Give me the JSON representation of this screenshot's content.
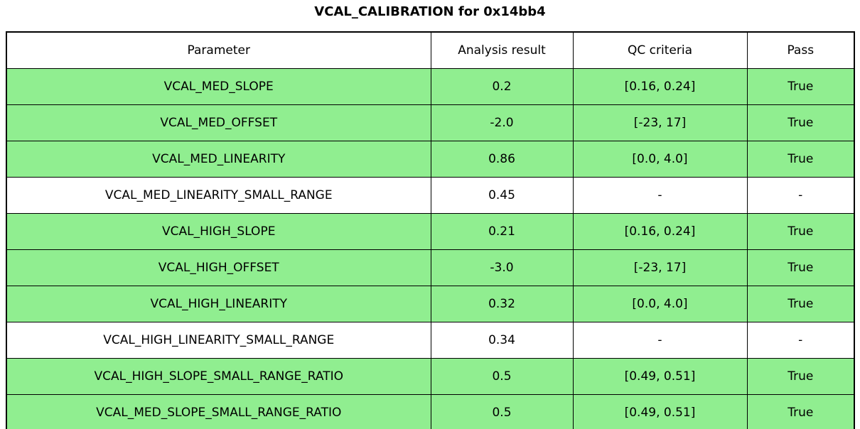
{
  "title": "VCAL_CALIBRATION for 0x14bb4",
  "colors": {
    "pass_row_bg": "#90EE90",
    "neutral_row_bg": "#FFFFFF",
    "border": "#000000",
    "text": "#000000"
  },
  "chart_data": {
    "type": "table",
    "title": "VCAL_CALIBRATION for 0x14bb4",
    "columns": [
      "Parameter",
      "Analysis result",
      "QC criteria",
      "Pass"
    ],
    "rows": [
      {
        "parameter": "VCAL_MED_SLOPE",
        "result": "0.2",
        "criteria": "[0.16, 0.24]",
        "pass": "True",
        "highlight": true
      },
      {
        "parameter": "VCAL_MED_OFFSET",
        "result": "-2.0",
        "criteria": "[-23, 17]",
        "pass": "True",
        "highlight": true
      },
      {
        "parameter": "VCAL_MED_LINEARITY",
        "result": "0.86",
        "criteria": "[0.0, 4.0]",
        "pass": "True",
        "highlight": true
      },
      {
        "parameter": "VCAL_MED_LINEARITY_SMALL_RANGE",
        "result": "0.45",
        "criteria": "-",
        "pass": "-",
        "highlight": false
      },
      {
        "parameter": "VCAL_HIGH_SLOPE",
        "result": "0.21",
        "criteria": "[0.16, 0.24]",
        "pass": "True",
        "highlight": true
      },
      {
        "parameter": "VCAL_HIGH_OFFSET",
        "result": "-3.0",
        "criteria": "[-23, 17]",
        "pass": "True",
        "highlight": true
      },
      {
        "parameter": "VCAL_HIGH_LINEARITY",
        "result": "0.32",
        "criteria": "[0.0, 4.0]",
        "pass": "True",
        "highlight": true
      },
      {
        "parameter": "VCAL_HIGH_LINEARITY_SMALL_RANGE",
        "result": "0.34",
        "criteria": "-",
        "pass": "-",
        "highlight": false
      },
      {
        "parameter": "VCAL_HIGH_SLOPE_SMALL_RANGE_RATIO",
        "result": "0.5",
        "criteria": "[0.49, 0.51]",
        "pass": "True",
        "highlight": true
      },
      {
        "parameter": "VCAL_MED_SLOPE_SMALL_RANGE_RATIO",
        "result": "0.5",
        "criteria": "[0.49, 0.51]",
        "pass": "True",
        "highlight": true
      }
    ]
  }
}
